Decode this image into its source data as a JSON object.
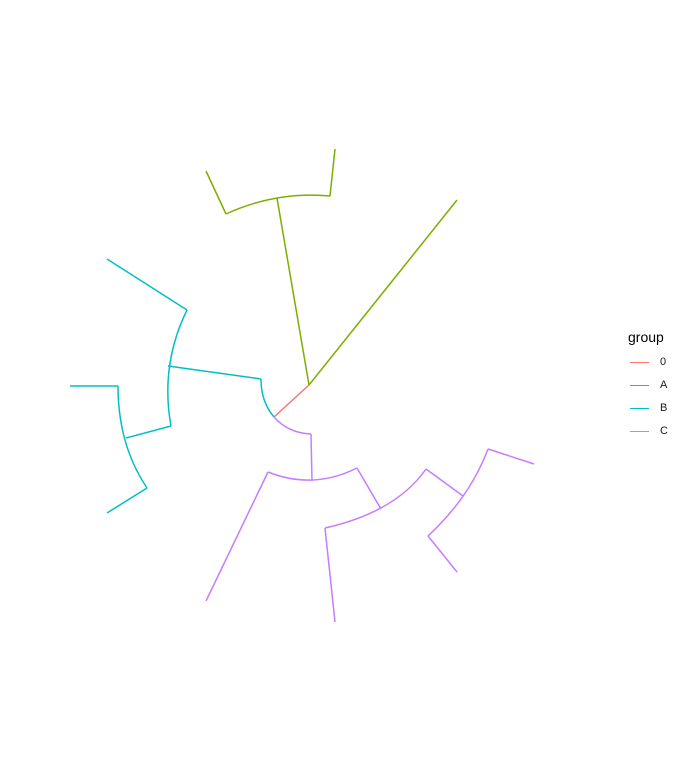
{
  "legend": {
    "title": "group",
    "items": [
      {
        "label": "0",
        "color": "#F8766D"
      },
      {
        "label": "A",
        "color": "#7CAE00"
      },
      {
        "label": "B",
        "color": "#00BFC4"
      },
      {
        "label": "C",
        "color": "#C77CFF"
      }
    ]
  },
  "tree": {
    "layout": "circular",
    "color_by": "group"
  }
}
